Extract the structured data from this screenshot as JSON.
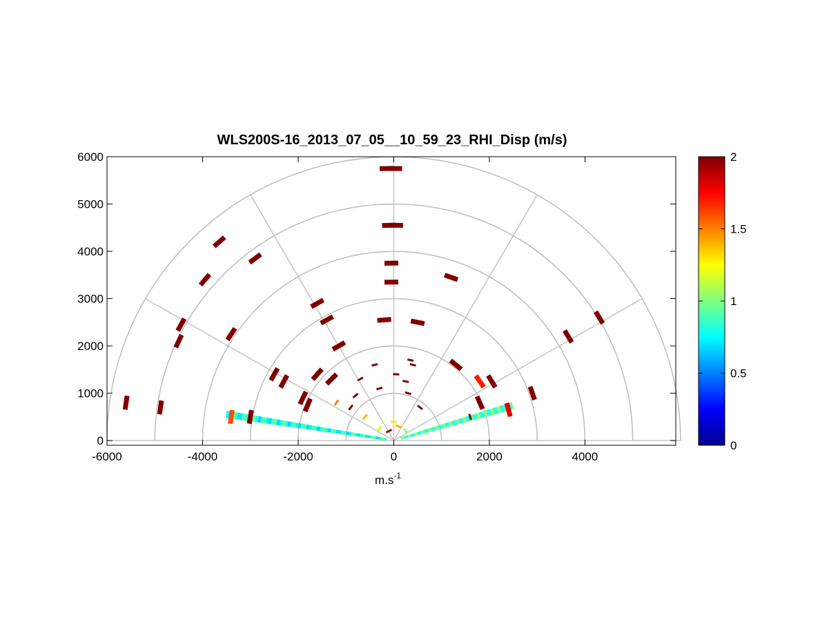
{
  "chart_data": {
    "type": "scatter",
    "title": "WLS200S-16_2013_07_05__10_59_23_RHI_Disp (m/s)",
    "xlabel": "m.s",
    "xlabel_sup": "-1",
    "ylabel": "",
    "xlim": [
      -6000,
      5900
    ],
    "ylim": [
      -100,
      6000
    ],
    "xticks": [
      -6000,
      -4000,
      -2000,
      0,
      2000,
      4000
    ],
    "xtick_labels": [
      "-6000",
      "-4000",
      "-2000",
      "0",
      "2000",
      "4000"
    ],
    "yticks": [
      0,
      1000,
      2000,
      3000,
      4000,
      5000,
      6000
    ],
    "ytick_labels": [
      "0",
      "1000",
      "2000",
      "3000",
      "4000",
      "5000",
      "6000"
    ],
    "grid": "polar",
    "polar_rings": [
      1000,
      2000,
      3000,
      4000,
      5000,
      6000
    ],
    "polar_spokes_deg": [
      0,
      30,
      60,
      90,
      120,
      150,
      180
    ],
    "colorbar": {
      "colormap": "jet",
      "min": 0,
      "max": 2,
      "ticks": [
        0,
        0.5,
        1,
        1.5,
        2
      ],
      "tick_labels": [
        "0",
        "0.5",
        "1",
        "1.5",
        "2"
      ]
    },
    "colors": {
      "high": "#800000",
      "grid": "#c0c0c0"
    },
    "beams": [
      {
        "angle_deg": 171,
        "range_start": 150,
        "range_end": 3550,
        "typical_value": 0.8
      },
      {
        "angle_deg": 16.5,
        "range_start": 150,
        "range_end": 2600,
        "typical_value": 0.9
      }
    ],
    "points": [
      {
        "x": -5600,
        "y": 800,
        "v": 2
      },
      {
        "x": -4880,
        "y": 700,
        "v": 2
      },
      {
        "x": -4500,
        "y": 2100,
        "v": 2
      },
      {
        "x": -4450,
        "y": 2450,
        "v": 2
      },
      {
        "x": -3950,
        "y": 3400,
        "v": 2
      },
      {
        "x": -3650,
        "y": 4200,
        "v": 2
      },
      {
        "x": -2900,
        "y": 3850,
        "v": 2
      },
      {
        "x": -3400,
        "y": 2250,
        "v": 2
      },
      {
        "x": -2500,
        "y": 1400,
        "v": 2
      },
      {
        "x": -2300,
        "y": 1250,
        "v": 2
      },
      {
        "x": -1600,
        "y": 2900,
        "v": 2
      },
      {
        "x": -1400,
        "y": 2550,
        "v": 2
      },
      {
        "x": -1150,
        "y": 2000,
        "v": 2
      },
      {
        "x": -150,
        "y": 5750,
        "v": 2
      },
      {
        "x": 30,
        "y": 5750,
        "v": 2
      },
      {
        "x": -100,
        "y": 4550,
        "v": 2
      },
      {
        "x": 50,
        "y": 4550,
        "v": 2
      },
      {
        "x": -50,
        "y": 3750,
        "v": 2
      },
      {
        "x": -50,
        "y": 3350,
        "v": 2
      },
      {
        "x": -200,
        "y": 2550,
        "v": 2
      },
      {
        "x": 500,
        "y": 2500,
        "v": 2
      },
      {
        "x": 1200,
        "y": 3450,
        "v": 2
      },
      {
        "x": 4300,
        "y": 2600,
        "v": 2
      },
      {
        "x": 3650,
        "y": 2200,
        "v": 2
      },
      {
        "x": 2900,
        "y": 1000,
        "v": 2
      },
      {
        "x": 2050,
        "y": 1250,
        "v": 2
      },
      {
        "x": 1800,
        "y": 1250,
        "v": 1.7
      },
      {
        "x": 1300,
        "y": 1600,
        "v": 2
      },
      {
        "x": -1300,
        "y": 1300,
        "v": 2
      },
      {
        "x": -1600,
        "y": 1400,
        "v": 2
      },
      {
        "x": -1900,
        "y": 900,
        "v": 2
      },
      {
        "x": -1800,
        "y": 750,
        "v": 2
      },
      {
        "x": -1200,
        "y": 800,
        "v": 1.5
      },
      {
        "x": -800,
        "y": 950,
        "v": 2
      },
      {
        "x": -900,
        "y": 700,
        "v": 2
      },
      {
        "x": -600,
        "y": 500,
        "v": 1.4
      },
      {
        "x": -700,
        "y": 1300,
        "v": 2
      },
      {
        "x": -400,
        "y": 1600,
        "v": 2
      },
      {
        "x": -300,
        "y": 1100,
        "v": 2
      },
      {
        "x": 50,
        "y": 1400,
        "v": 2
      },
      {
        "x": 350,
        "y": 1700,
        "v": 2
      },
      {
        "x": 400,
        "y": 1600,
        "v": 2
      },
      {
        "x": 250,
        "y": 1250,
        "v": 2
      },
      {
        "x": 300,
        "y": 1000,
        "v": 2
      },
      {
        "x": 550,
        "y": 700,
        "v": 2
      },
      {
        "x": 1800,
        "y": 800,
        "v": 2
      },
      {
        "x": -3400,
        "y": 500,
        "v": 1.6
      },
      {
        "x": -3000,
        "y": 500,
        "v": 2
      },
      {
        "x": 2400,
        "y": 650,
        "v": 1.8
      },
      {
        "x": 1600,
        "y": 500,
        "v": 2
      },
      {
        "x": -100,
        "y": 200,
        "v": 1.9
      },
      {
        "x": 100,
        "y": 300,
        "v": 1.4
      },
      {
        "x": -300,
        "y": 250,
        "v": 1.2
      },
      {
        "x": 250,
        "y": 200,
        "v": 1.0
      },
      {
        "x": 0,
        "y": 400,
        "v": 1.3
      }
    ]
  }
}
